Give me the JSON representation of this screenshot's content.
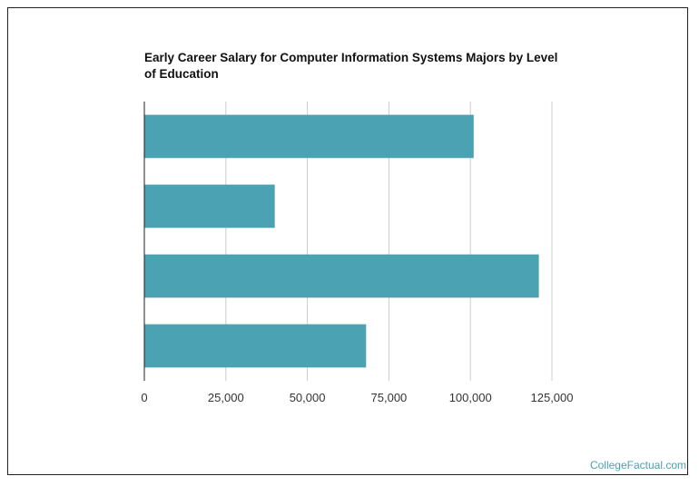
{
  "chart_data": {
    "type": "bar",
    "orientation": "horizontal",
    "title": "Early Career Salary for Computer Information Systems Majors by Level of Education",
    "categories": [
      "",
      "",
      "",
      ""
    ],
    "values": [
      101000,
      40000,
      121000,
      68000
    ],
    "xlim": [
      0,
      125000
    ],
    "xticks": [
      0,
      25000,
      50000,
      75000,
      100000,
      125000
    ],
    "xtick_labels": [
      "0",
      "25,000",
      "50,000",
      "75,000",
      "100,000",
      "125,000"
    ],
    "xlabel": "",
    "ylabel": "",
    "grid": true,
    "bar_color": "#4ba2b3",
    "grid_color": "#cccccc"
  },
  "watermark": "CollegeFactual.com"
}
